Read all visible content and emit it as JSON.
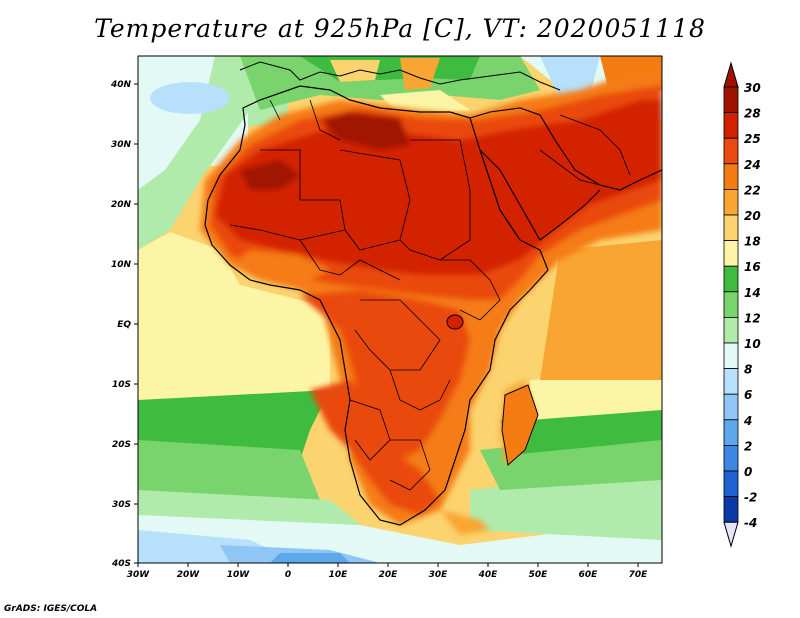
{
  "title": "Temperature at 925hPa [C], VT: 2020051118",
  "credit": "GrADS: IGES/COLA",
  "map": {
    "lat_labels": [
      "40N",
      "30N",
      "20N",
      "10N",
      "EQ",
      "10S",
      "20S",
      "30S",
      "40S"
    ],
    "lon_labels": [
      "30W",
      "20W",
      "10W",
      "0",
      "10E",
      "20E",
      "30E",
      "40E",
      "50E",
      "60E",
      "70E"
    ],
    "region": {
      "lon_min": -30,
      "lon_max": 75,
      "lat_min": -40,
      "lat_max": 44
    }
  },
  "colorbar": {
    "labels": [
      "30",
      "28",
      "25",
      "24",
      "22",
      "20",
      "18",
      "16",
      "14",
      "12",
      "10",
      "8",
      "6",
      "4",
      "2",
      "0",
      "-2",
      "-4"
    ],
    "colors": [
      "#a01200",
      "#d32000",
      "#ea4a10",
      "#f57c12",
      "#f9a533",
      "#fbd36f",
      "#fdf5a6",
      "#3fbc3f",
      "#79d46e",
      "#b0ebac",
      "#e2f9f6",
      "#b6e0fb",
      "#8ec6f5",
      "#5da7ed",
      "#3b87e3",
      "#1d63d3",
      "#0b3aa8",
      "#0b1777"
    ],
    "top_cap_color": "#a01200",
    "bottom_cap_color": "#e6e6fb"
  },
  "legend_ticks": [
    "30",
    "28",
    "25",
    "24",
    "22",
    "20",
    "18",
    "16",
    "14",
    "12",
    "10",
    "8",
    "6",
    "4",
    "2",
    "0",
    "-2",
    "-4"
  ]
}
